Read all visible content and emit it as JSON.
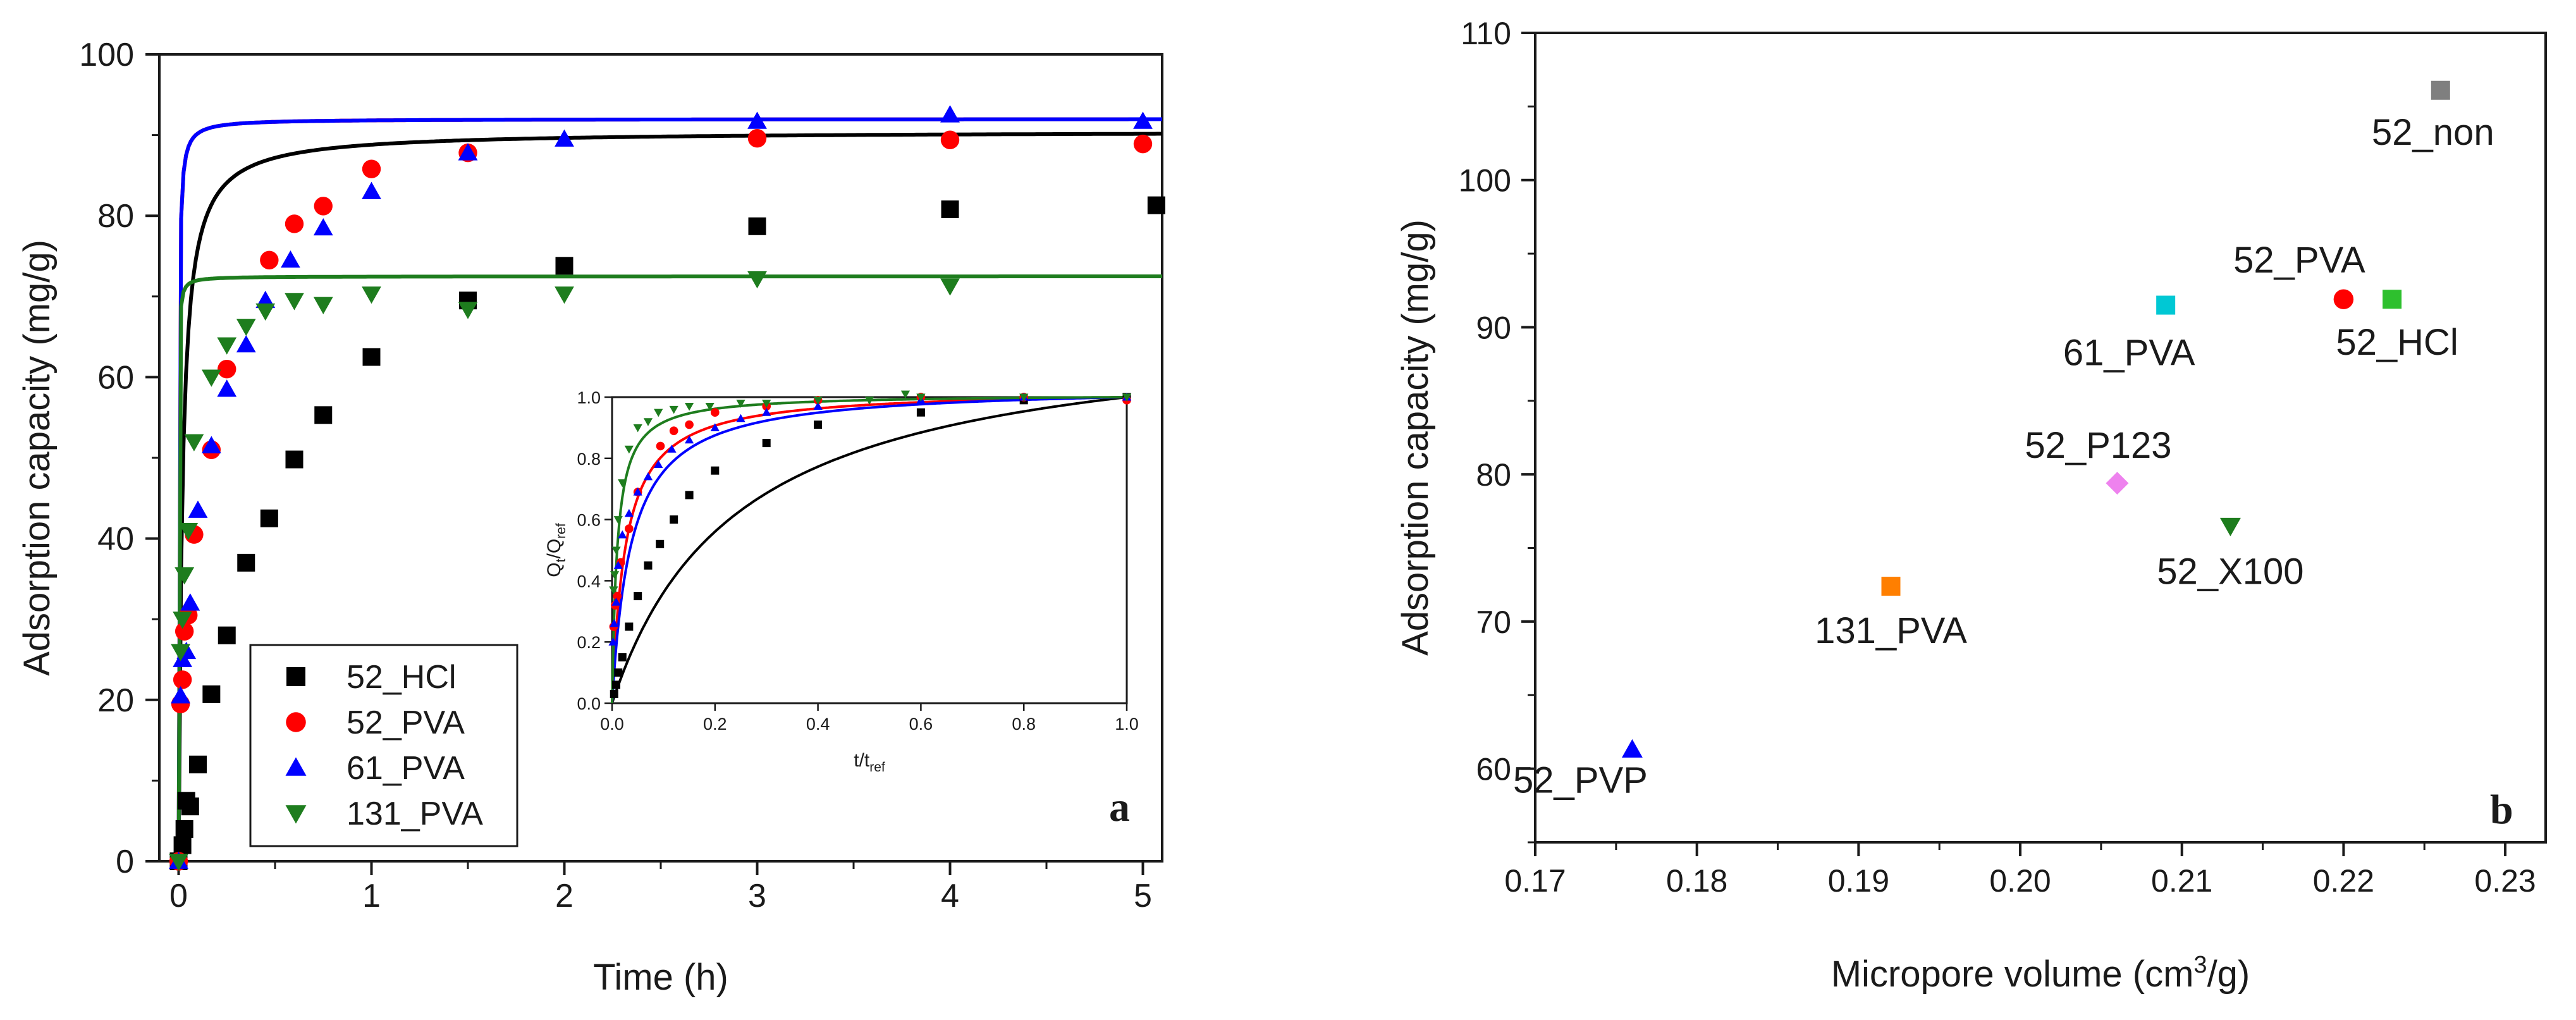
{
  "chart_data": [
    {
      "panel": "a",
      "type": "scatter",
      "xlabel": "Time (h)",
      "ylabel": "Adsorption capacity (mg/g)",
      "xlim": [
        -0.1,
        5.1
      ],
      "ylim": [
        0,
        100
      ],
      "xticks": [
        0,
        1,
        2,
        3,
        4,
        5
      ],
      "yticks": [
        0,
        20,
        40,
        60,
        80,
        100
      ],
      "legend": {
        "position": "bottom-left",
        "entries": [
          "52_HCl",
          "52_PVA",
          "61_PVA",
          "131_PVA"
        ]
      },
      "series": [
        {
          "name": "52_HCl",
          "color": "#000000",
          "marker": "square",
          "x": [
            0,
            0.02,
            0.03,
            0.04,
            0.06,
            0.1,
            0.17,
            0.25,
            0.35,
            0.47,
            0.6,
            0.75,
            1.0,
            1.5,
            2.0,
            3.0,
            4.0,
            5.07
          ],
          "y": [
            0,
            2,
            4,
            7.5,
            6.8,
            12,
            20.7,
            28,
            37,
            42.5,
            49.8,
            55.3,
            62.5,
            69.5,
            73.8,
            78.7,
            80.8,
            81.3
          ],
          "fit": {
            "qe": 90.5,
            "k": 0.58
          }
        },
        {
          "name": "52_PVA",
          "color": "#ff0000",
          "marker": "circle",
          "x": [
            0,
            0.01,
            0.02,
            0.03,
            0.05,
            0.08,
            0.17,
            0.25,
            0.47,
            0.6,
            0.75,
            1.0,
            1.5,
            3.0,
            4.0,
            5.0
          ],
          "y": [
            0,
            19.5,
            22.5,
            28.5,
            30.5,
            40.5,
            51,
            61,
            74.5,
            79,
            81.2,
            85.8,
            87.8,
            89.6,
            89.4,
            88.9
          ],
          "fit": {
            "qe": 92,
            "k": 5.5
          }
        },
        {
          "name": "61_PVA",
          "color": "#0000ff",
          "marker": "triangle-up",
          "x": [
            0,
            0.01,
            0.02,
            0.04,
            0.06,
            0.1,
            0.17,
            0.25,
            0.35,
            0.45,
            0.58,
            0.75,
            1.0,
            1.5,
            2.0,
            3.0,
            4.0,
            5.0
          ],
          "y": [
            0,
            20.5,
            25,
            26,
            32,
            43.5,
            51.5,
            58.5,
            64,
            69.5,
            74.5,
            78.5,
            83,
            87.8,
            89.5,
            91.7,
            92.5,
            91.7
          ],
          "fit": {
            "qe": 92,
            "k": 5.5
          }
        },
        {
          "name": "131_PVA",
          "color": "#1e7d1e",
          "marker": "triangle-down",
          "x": [
            0,
            0.01,
            0.02,
            0.03,
            0.05,
            0.08,
            0.17,
            0.25,
            0.35,
            0.45,
            0.6,
            0.75,
            1.0,
            1.5,
            2.0,
            3.0,
            4.0
          ],
          "y": [
            0,
            26,
            30,
            35.5,
            41,
            52,
            60,
            64,
            66.3,
            68.2,
            69.5,
            69,
            70.3,
            68.4,
            70.3,
            72.2,
            71.3
          ],
          "fit": {
            "qe": 72.5,
            "k": 20
          }
        }
      ],
      "inset": {
        "xlabel": "t/t",
        "xlabel_sub": "ref",
        "ylabel_parts": [
          "Q",
          "t",
          "/Q",
          "ref"
        ],
        "xlim": [
          0,
          1
        ],
        "ylim": [
          0,
          1
        ],
        "xticks": [
          "0.0",
          "0.2",
          "0.4",
          "0.6",
          "0.8",
          "1.0"
        ],
        "yticks": [
          "0.0",
          "0.2",
          "0.4",
          "0.6",
          "0.8",
          "1.0"
        ],
        "series": [
          {
            "name": "52_HCl",
            "color": "#000000",
            "marker": "square",
            "fit_k": 4.1,
            "x": [
              0.004,
              0.008,
              0.012,
              0.02,
              0.033,
              0.05,
              0.07,
              0.093,
              0.12,
              0.15,
              0.2,
              0.3,
              0.4,
              0.6,
              0.8,
              1.0
            ],
            "y": [
              0.03,
              0.06,
              0.1,
              0.15,
              0.25,
              0.35,
              0.45,
              0.52,
              0.6,
              0.68,
              0.76,
              0.85,
              0.91,
              0.95,
              0.99,
              1.0
            ]
          },
          {
            "name": "52_PVA",
            "color": "#ff0000",
            "marker": "circle",
            "fit_k": 38,
            "x": [
              0.003,
              0.006,
              0.01,
              0.017,
              0.033,
              0.05,
              0.094,
              0.12,
              0.15,
              0.2,
              0.3,
              0.4,
              0.6,
              0.8,
              1.0
            ],
            "y": [
              0.25,
              0.32,
              0.35,
              0.46,
              0.57,
              0.69,
              0.84,
              0.89,
              0.91,
              0.95,
              0.97,
              0.99,
              1.0,
              1.0,
              0.99
            ],
            "name_note": ""
          },
          {
            "name": "61_PVA",
            "color": "#0000ff",
            "marker": "triangle-up",
            "fit_k": 27,
            "x": [
              0.002,
              0.004,
              0.008,
              0.012,
              0.02,
              0.033,
              0.05,
              0.07,
              0.09,
              0.116,
              0.15,
              0.2,
              0.25,
              0.3,
              0.4,
              0.6,
              0.8,
              1.0
            ],
            "y": [
              0.2,
              0.26,
              0.33,
              0.45,
              0.55,
              0.62,
              0.69,
              0.74,
              0.78,
              0.83,
              0.86,
              0.9,
              0.93,
              0.95,
              0.97,
              0.99,
              1.0,
              1.0
            ]
          },
          {
            "name": "131_PVA",
            "color": "#1e7d1e",
            "marker": "triangle-down",
            "fit_k": 100,
            "x": [
              0.003,
              0.005,
              0.008,
              0.012,
              0.02,
              0.033,
              0.05,
              0.07,
              0.09,
              0.12,
              0.15,
              0.19,
              0.25,
              0.3,
              0.4,
              0.5,
              0.57,
              0.6,
              0.8,
              1.0
            ],
            "y": [
              0.37,
              0.42,
              0.5,
              0.6,
              0.72,
              0.83,
              0.9,
              0.92,
              0.95,
              0.96,
              0.97,
              0.97,
              0.98,
              0.98,
              0.99,
              0.99,
              1.01,
              1.0,
              1.0,
              1.0
            ]
          }
        ]
      },
      "panel_label": "a"
    },
    {
      "panel": "b",
      "type": "scatter",
      "xlabel": "Micropore volume (cm",
      "xlabel_sup": "3",
      "xlabel_tail": "/g)",
      "ylabel": "Adsorption capacity (mg/g)",
      "xlim": [
        0.17,
        0.2325
      ],
      "ylim": [
        55,
        110
      ],
      "xticks": [
        "0.17",
        "0.18",
        "0.19",
        "0.20",
        "0.21",
        "0.22",
        "0.23"
      ],
      "yticks": [
        "60",
        "70",
        "80",
        "90",
        "100",
        "110"
      ],
      "points": [
        {
          "label": "52_non",
          "x": 0.226,
          "y": 106.1,
          "color": "#7f7f7f",
          "marker": "square",
          "label_pos": "below"
        },
        {
          "label": "52_PVA",
          "x": 0.22,
          "y": 91.9,
          "color": "#ff0000",
          "marker": "circle",
          "label_pos": "above-left"
        },
        {
          "label": "52_HCl",
          "x": 0.223,
          "y": 91.9,
          "color": "#2ec02e",
          "marker": "square",
          "label_pos": "below"
        },
        {
          "label": "61_PVA",
          "x": 0.209,
          "y": 91.5,
          "color": "#00c8d4",
          "marker": "square",
          "label_pos": "below-left"
        },
        {
          "label": "52_P123",
          "x": 0.206,
          "y": 79.4,
          "color": "#ee82ee",
          "marker": "diamond",
          "label_pos": "above-left"
        },
        {
          "label": "52_X100",
          "x": 0.213,
          "y": 76.5,
          "color": "#1e7d1e",
          "marker": "triangle-down",
          "label_pos": "below"
        },
        {
          "label": "131_PVA",
          "x": 0.192,
          "y": 72.4,
          "color": "#ff7f00",
          "marker": "square",
          "label_pos": "below"
        },
        {
          "label": "52_PVP",
          "x": 0.176,
          "y": 61.3,
          "color": "#0000ff",
          "marker": "triangle-up",
          "label_pos": "below-left"
        }
      ],
      "panel_label": "b"
    }
  ]
}
